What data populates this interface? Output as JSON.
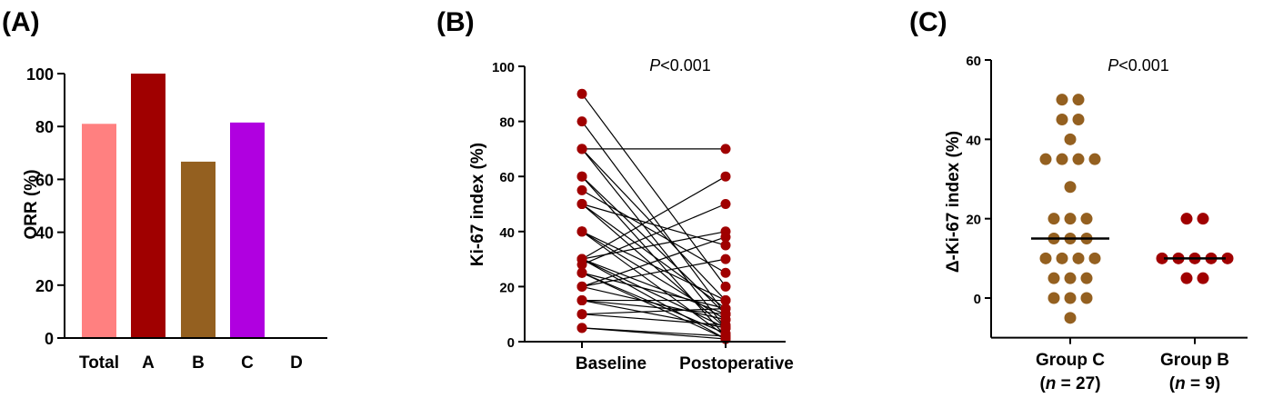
{
  "chart_data": [
    {
      "type": "bar",
      "panel_label": "(A)",
      "categories": [
        "Total",
        "A",
        "B",
        "C",
        "D"
      ],
      "values": [
        81,
        100,
        66.7,
        81.5,
        0
      ],
      "colors": [
        "#ff8080",
        "#a00000",
        "#946020",
        "#b000e0",
        "#ffffff"
      ],
      "ylabel": "ORR (%)",
      "ylim": [
        0,
        100
      ],
      "yticks": [
        "0",
        "20",
        "40",
        "60",
        "80",
        "100"
      ],
      "grid": false
    },
    {
      "type": "line",
      "panel_label": "(B)",
      "categories": [
        "Baseline",
        "Postoperative"
      ],
      "ylabel": "Ki-67 index (%)",
      "ylim": [
        0,
        100
      ],
      "yticks": [
        "0",
        "20",
        "40",
        "60",
        "80",
        "100"
      ],
      "p_italic": "P",
      "p_text": "<0.001",
      "point_color": "#a00000",
      "pairs": [
        [
          90,
          20
        ],
        [
          80,
          10
        ],
        [
          70,
          70
        ],
        [
          70,
          15
        ],
        [
          70,
          5
        ],
        [
          60,
          10
        ],
        [
          60,
          2
        ],
        [
          55,
          25
        ],
        [
          50,
          35
        ],
        [
          50,
          12
        ],
        [
          50,
          5
        ],
        [
          40,
          15
        ],
        [
          40,
          8
        ],
        [
          40,
          2
        ],
        [
          30,
          60
        ],
        [
          30,
          40
        ],
        [
          30,
          10
        ],
        [
          30,
          5
        ],
        [
          30,
          1
        ],
        [
          28,
          50
        ],
        [
          25,
          12
        ],
        [
          25,
          3
        ],
        [
          25,
          1
        ],
        [
          20,
          38
        ],
        [
          20,
          30
        ],
        [
          20,
          8
        ],
        [
          15,
          15
        ],
        [
          15,
          10
        ],
        [
          15,
          5
        ],
        [
          10,
          12
        ],
        [
          10,
          6
        ],
        [
          5,
          2
        ],
        [
          5,
          1
        ]
      ],
      "grid": false
    },
    {
      "type": "scatter",
      "panel_label": "(C)",
      "categories": [
        "Group C",
        "Group B"
      ],
      "n_labels": [
        "27",
        "9"
      ],
      "n_prefix": "n",
      "n_open": "(",
      "n_eq": " = ",
      "n_close": ")",
      "ylabel": "Δ-Ki-67 index (%)",
      "ylim": [
        -10,
        60
      ],
      "yticks": [
        "0",
        "20",
        "40",
        "60"
      ],
      "p_italic": "P",
      "p_text": "<0.001",
      "series": [
        {
          "color": "#946020",
          "median": 15,
          "values": [
            50,
            50,
            45,
            45,
            40,
            35,
            35,
            35,
            35,
            28,
            20,
            20,
            20,
            15,
            15,
            15,
            10,
            10,
            10,
            10,
            5,
            5,
            5,
            0,
            0,
            0,
            -5
          ]
        },
        {
          "color": "#a00000",
          "median": 10,
          "values": [
            20,
            20,
            10,
            10,
            10,
            10,
            10,
            5,
            5
          ]
        }
      ],
      "grid": false
    }
  ]
}
